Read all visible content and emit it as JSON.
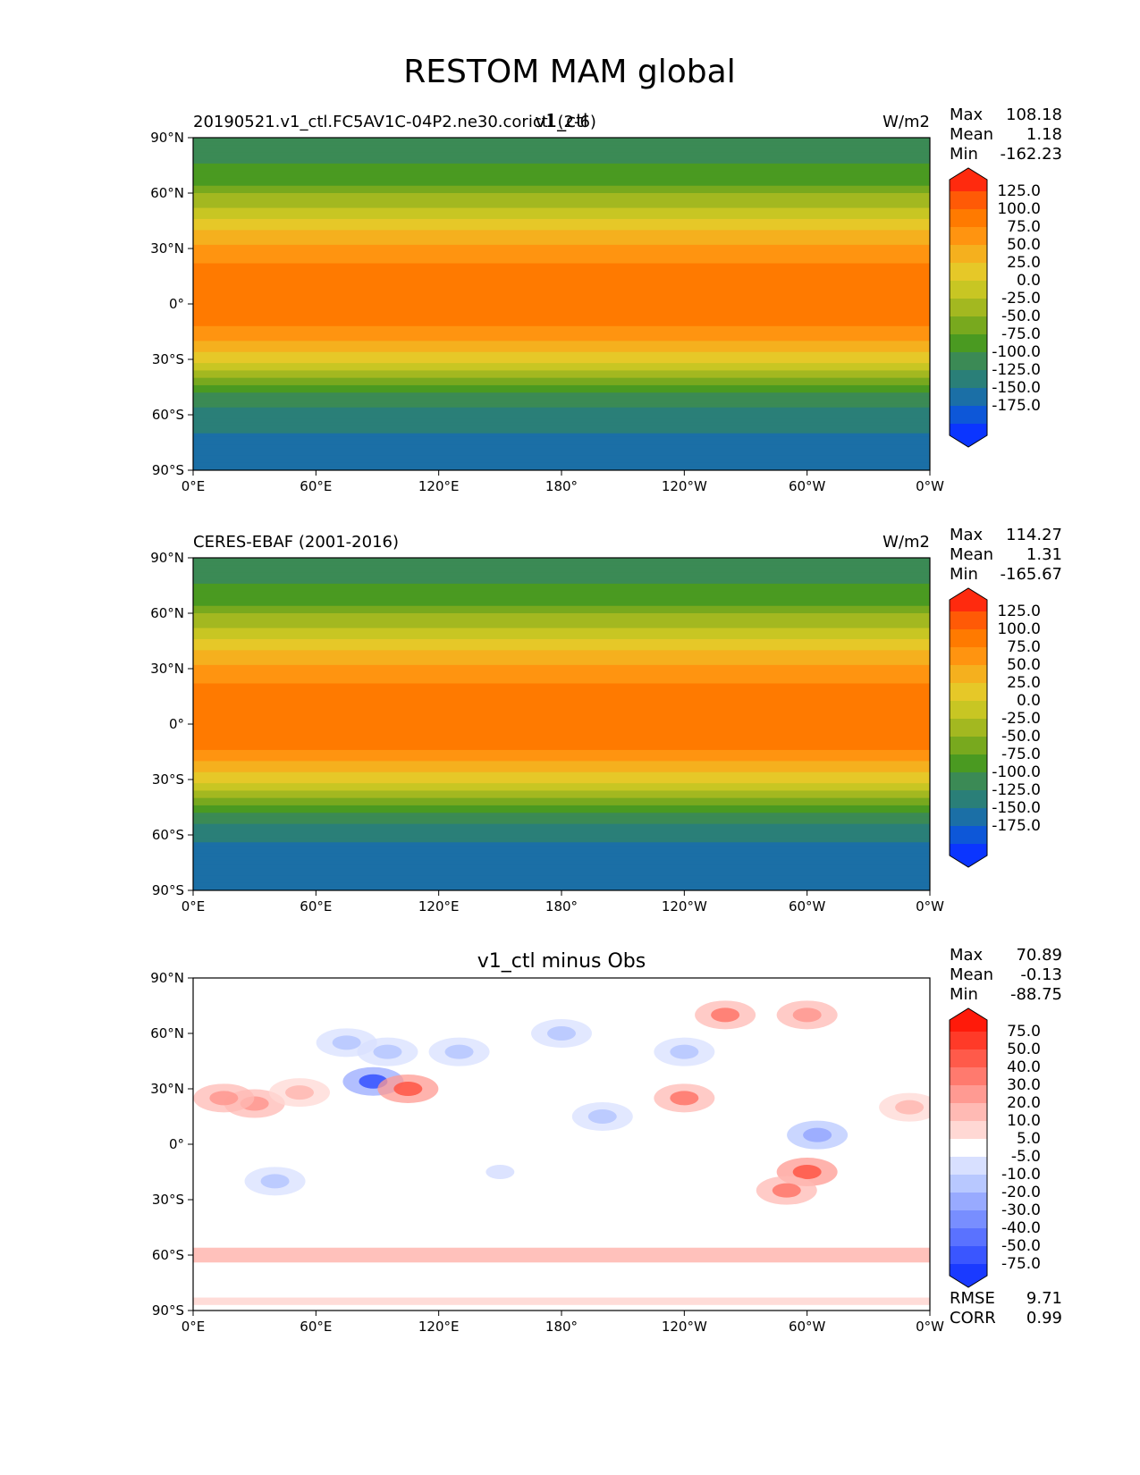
{
  "figure": {
    "title": "RESTOM MAM global"
  },
  "chart_data": [
    {
      "type": "heatmap",
      "panel": "test",
      "left_title": "20190521.v1_ctl.FC5AV1C-04P2.ne30.corictl (2-6)",
      "center_title": "v1_ctl",
      "right_title": "W/m2",
      "stats": [
        {
          "label": "Max",
          "value": "108.18"
        },
        {
          "label": "Mean",
          "value": "1.18"
        },
        {
          "label": "Min",
          "value": "-162.23"
        }
      ],
      "x_ticks": [
        "0°E",
        "60°E",
        "120°E",
        "180°",
        "120°W",
        "60°W",
        "0°W"
      ],
      "y_ticks": [
        "90°N",
        "60°N",
        "30°N",
        "0°",
        "30°S",
        "60°S",
        "90°S"
      ],
      "colorbar": {
        "labels": [
          "125.0",
          "100.0",
          "75.0",
          "50.0",
          "25.0",
          "0.0",
          "-25.0",
          "-50.0",
          "-75.0",
          "-100.0",
          "-125.0",
          "-150.0",
          "-175.0"
        ],
        "colors": [
          "#ff2a0e",
          "#ff5a06",
          "#ff7a00",
          "#ff9410",
          "#f5b01e",
          "#e6c828",
          "#c8c623",
          "#a3b820",
          "#78a91e",
          "#4a9a21",
          "#3b8a55",
          "#2a7f78",
          "#1b6fa6",
          "#0d57d8",
          "#0b35ff"
        ]
      },
      "y_range": [
        -90,
        90
      ],
      "x_range": [
        0,
        360
      ],
      "field": "zonal",
      "lat_profile": [
        [
          90,
          -105
        ],
        [
          75,
          -100
        ],
        [
          65,
          -80
        ],
        [
          58,
          -45
        ],
        [
          45,
          0
        ],
        [
          35,
          45
        ],
        [
          20,
          80
        ],
        [
          5,
          90
        ],
        [
          -5,
          85
        ],
        [
          -15,
          70
        ],
        [
          -28,
          20
        ],
        [
          -40,
          -50
        ],
        [
          -50,
          -110
        ],
        [
          -60,
          -140
        ],
        [
          -70,
          -150
        ],
        [
          -80,
          -175
        ],
        [
          -90,
          -175
        ]
      ]
    },
    {
      "type": "heatmap",
      "panel": "reference",
      "left_title": "CERES-EBAF (2001-2016)",
      "center_title": "",
      "right_title": "W/m2",
      "stats": [
        {
          "label": "Max",
          "value": "114.27"
        },
        {
          "label": "Mean",
          "value": "1.31"
        },
        {
          "label": "Min",
          "value": "-165.67"
        }
      ],
      "x_ticks": [
        "0°E",
        "60°E",
        "120°E",
        "180°",
        "120°W",
        "60°W",
        "0°W"
      ],
      "y_ticks": [
        "90°N",
        "60°N",
        "30°N",
        "0°",
        "30°S",
        "60°S",
        "90°S"
      ],
      "colorbar": {
        "labels": [
          "125.0",
          "100.0",
          "75.0",
          "50.0",
          "25.0",
          "0.0",
          "-25.0",
          "-50.0",
          "-75.0",
          "-100.0",
          "-125.0",
          "-150.0",
          "-175.0"
        ],
        "colors": [
          "#ff2a0e",
          "#ff5a06",
          "#ff7a00",
          "#ff9410",
          "#f5b01e",
          "#e6c828",
          "#c8c623",
          "#a3b820",
          "#78a91e",
          "#4a9a21",
          "#3b8a55",
          "#2a7f78",
          "#1b6fa6",
          "#0d57d8",
          "#0b35ff"
        ]
      },
      "y_range": [
        -90,
        90
      ],
      "x_range": [
        0,
        360
      ],
      "field": "zonal",
      "lat_profile": [
        [
          90,
          -105
        ],
        [
          75,
          -100
        ],
        [
          65,
          -80
        ],
        [
          58,
          -45
        ],
        [
          45,
          0
        ],
        [
          35,
          45
        ],
        [
          20,
          80
        ],
        [
          5,
          92
        ],
        [
          -5,
          88
        ],
        [
          -15,
          72
        ],
        [
          -28,
          20
        ],
        [
          -40,
          -50
        ],
        [
          -50,
          -115
        ],
        [
          -60,
          -145
        ],
        [
          -70,
          -160
        ],
        [
          -80,
          -175
        ],
        [
          -90,
          -175
        ]
      ]
    },
    {
      "type": "heatmap",
      "panel": "difference",
      "left_title": "",
      "center_title": "v1_ctl minus Obs",
      "right_title": "",
      "stats": [
        {
          "label": "Max",
          "value": "70.89"
        },
        {
          "label": "Mean",
          "value": "-0.13"
        },
        {
          "label": "Min",
          "value": "-88.75"
        }
      ],
      "extra_stats": [
        {
          "label": "RMSE",
          "value": "9.71"
        },
        {
          "label": "CORR",
          "value": "0.99"
        }
      ],
      "x_ticks": [
        "0°E",
        "60°E",
        "120°E",
        "180°",
        "120°W",
        "60°W",
        "0°W"
      ],
      "y_ticks": [
        "90°N",
        "60°N",
        "30°N",
        "0°",
        "30°S",
        "60°S",
        "90°S"
      ],
      "colorbar": {
        "labels": [
          "75.0",
          "50.0",
          "40.0",
          "30.0",
          "20.0",
          "10.0",
          "5.0",
          "-5.0",
          "-10.0",
          "-20.0",
          "-30.0",
          "-40.0",
          "-50.0",
          "-75.0"
        ],
        "colors": [
          "#ff1a0a",
          "#ff3a28",
          "#ff5a4a",
          "#ff7a6e",
          "#ff9a92",
          "#ffbab4",
          "#ffd8d4",
          "#ffffff",
          "#d8e0ff",
          "#b8c8ff",
          "#98aaff",
          "#788eff",
          "#5a72ff",
          "#3a56ff",
          "#1a3aff"
        ]
      },
      "y_range": [
        -90,
        90
      ],
      "x_range": [
        0,
        360
      ],
      "field": "diff",
      "diff_blobs": [
        {
          "lon": 30,
          "lat": 22,
          "val": 25
        },
        {
          "lon": 15,
          "lat": 25,
          "val": 20
        },
        {
          "lon": 52,
          "lat": 28,
          "val": 15
        },
        {
          "lon": 88,
          "lat": 34,
          "val": -55
        },
        {
          "lon": 105,
          "lat": 30,
          "val": 40
        },
        {
          "lon": 95,
          "lat": 50,
          "val": -20
        },
        {
          "lon": 75,
          "lat": 55,
          "val": -15
        },
        {
          "lon": 130,
          "lat": 50,
          "val": -12
        },
        {
          "lon": 240,
          "lat": 25,
          "val": 30
        },
        {
          "lon": 300,
          "lat": -15,
          "val": 40
        },
        {
          "lon": 290,
          "lat": -25,
          "val": 35
        },
        {
          "lon": 305,
          "lat": 5,
          "val": -25
        },
        {
          "lon": 200,
          "lat": 15,
          "val": -12
        },
        {
          "lon": 260,
          "lat": 70,
          "val": 30
        },
        {
          "lon": 300,
          "lat": 70,
          "val": 25
        },
        {
          "lon": 40,
          "lat": -20,
          "val": -15
        },
        {
          "lon": 150,
          "lat": -15,
          "val": -10
        },
        {
          "lon": 350,
          "lat": 20,
          "val": 15
        },
        {
          "lon": 180,
          "lat": 60,
          "val": -15
        },
        {
          "lon": 240,
          "lat": 50,
          "val": -15
        }
      ],
      "diff_bands": [
        {
          "lat": -60,
          "width": 8,
          "val": 10
        },
        {
          "lat": -85,
          "width": 4,
          "val": 5
        }
      ]
    }
  ]
}
